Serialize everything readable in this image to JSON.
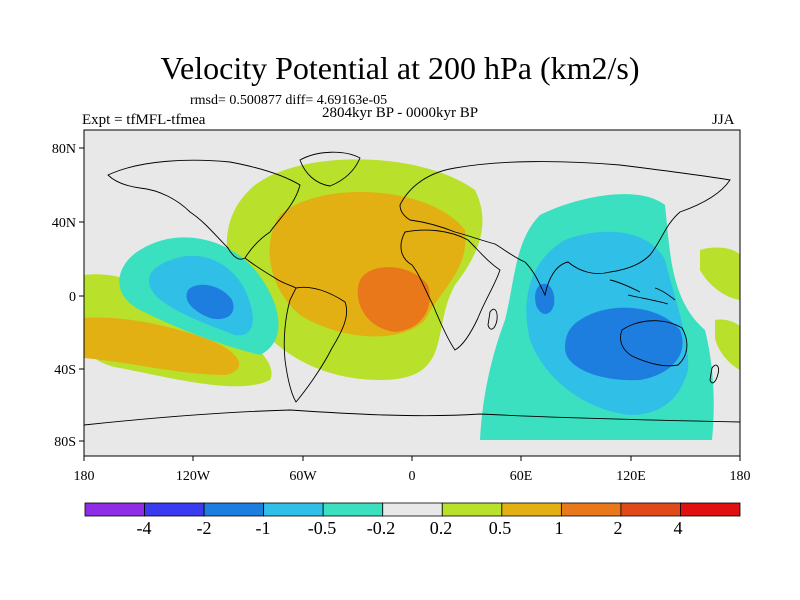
{
  "title": "Velocity Potential at 200 hPa (km2/s)",
  "stats": "rmsd= 0.500877 diff= 4.69163e-05",
  "experiment": "Expt = tfMFL-tfmea",
  "period": "2804kyr BP - 0000kyr BP",
  "season": "JJA",
  "map": {
    "lon_ticks": [
      "180",
      "120W",
      "60W",
      "0",
      "60E",
      "120E",
      "180"
    ],
    "lat_ticks": [
      "80N",
      "40N",
      "0",
      "40S",
      "80S"
    ],
    "land_color": "#e8e8e8",
    "coast_color": "#000000"
  },
  "colorbar": {
    "labels": [
      "-4",
      "-2",
      "-1",
      "-0.5",
      "-0.2",
      "0.2",
      "0.5",
      "1",
      "2",
      "4"
    ],
    "colors": [
      "#8f2de6",
      "#3a3af0",
      "#1e7ee0",
      "#30bfe6",
      "#3ae0c0",
      "#e8e8e8",
      "#b9e02a",
      "#e2b012",
      "#e8781a",
      "#e04a1a",
      "#e01010"
    ]
  }
}
